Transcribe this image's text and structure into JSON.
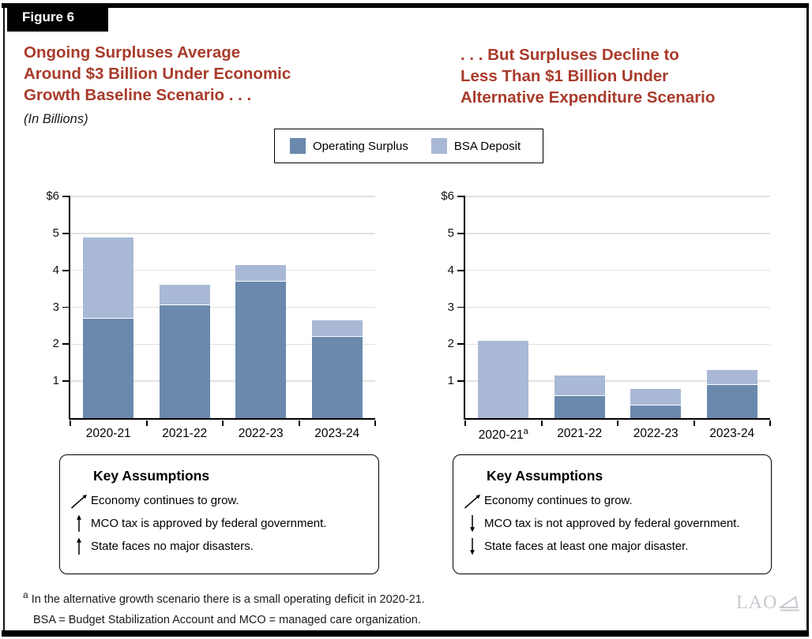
{
  "figure_label": "Figure 6",
  "header": {
    "left_title_lines": [
      "Ongoing Surpluses Average",
      "Around $3 Billion Under Economic",
      "Growth Baseline Scenario . . ."
    ],
    "right_title_lines": [
      ". . . But Surpluses Decline to",
      "Less Than $1 Billion Under",
      "Alternative Expenditure Scenario"
    ],
    "subtitle": "(In Billions)"
  },
  "colors": {
    "title_red": "#A93B2B",
    "operating_surplus": "#6A89AD",
    "bsa_deposit": "#A9B9D5",
    "gridline": "#E1E1E1"
  },
  "legend": {
    "items": [
      {
        "label": "Operating Surplus",
        "color": "#6A89AD"
      },
      {
        "label": "BSA Deposit",
        "color": "#A9B9D5"
      }
    ]
  },
  "chart_data": [
    {
      "type": "bar",
      "stacked": true,
      "title": "Ongoing Surpluses Average Around $3 Billion Under Economic Growth Baseline Scenario . . .",
      "units": "In Billions",
      "categories": [
        "2020-21",
        "2021-22",
        "2022-23",
        "2023-24"
      ],
      "category_superscripts": [
        "",
        "",
        "",
        ""
      ],
      "series": [
        {
          "name": "Operating Surplus",
          "color": "#6A89AD",
          "values": [
            2.7,
            3.05,
            3.7,
            2.2
          ]
        },
        {
          "name": "BSA Deposit",
          "color": "#A9B9D5",
          "values": [
            2.2,
            0.55,
            0.45,
            0.45
          ]
        }
      ],
      "totals": [
        4.9,
        3.6,
        4.15,
        2.65
      ],
      "ylim": [
        0,
        6
      ],
      "ytick_values": [
        1,
        2,
        3,
        4,
        5,
        6
      ],
      "ytick_labels": [
        "1",
        "2",
        "3",
        "4",
        "5",
        "$6"
      ],
      "grid": true,
      "legend_position": "top-center-shared"
    },
    {
      "type": "bar",
      "stacked": true,
      "title": ". . . But Surpluses Decline to Less Than $1 Billion Under Alternative Expenditure Scenario",
      "units": "In Billions",
      "categories": [
        "2020-21",
        "2021-22",
        "2022-23",
        "2023-24"
      ],
      "category_superscripts": [
        "a",
        "",
        "",
        ""
      ],
      "series": [
        {
          "name": "Operating Surplus",
          "color": "#6A89AD",
          "values": [
            0,
            0.6,
            0.35,
            0.9
          ]
        },
        {
          "name": "BSA Deposit",
          "color": "#A9B9D5",
          "values": [
            2.1,
            0.55,
            0.45,
            0.4
          ]
        }
      ],
      "totals": [
        2.1,
        1.15,
        0.8,
        1.3
      ],
      "ylim": [
        0,
        6
      ],
      "ytick_values": [
        1,
        2,
        3,
        4,
        5,
        6
      ],
      "ytick_labels": [
        "1",
        "2",
        "3",
        "4",
        "5",
        "$6"
      ],
      "grid": true,
      "legend_position": "top-center-shared"
    }
  ],
  "assumptions": [
    {
      "title": "Key Assumptions",
      "items": [
        {
          "icon": "arrow-up-right",
          "text": "Economy continues to grow."
        },
        {
          "icon": "arrow-up",
          "text": "MCO tax is approved by federal government."
        },
        {
          "icon": "arrow-up",
          "text": "State faces no major disasters."
        }
      ]
    },
    {
      "title": "Key Assumptions",
      "items": [
        {
          "icon": "arrow-up-right",
          "text": "Economy continues to grow."
        },
        {
          "icon": "arrow-down",
          "text": "MCO tax is not approved by federal government."
        },
        {
          "icon": "arrow-down",
          "text": "State faces at least one major disaster."
        }
      ]
    }
  ],
  "footnotes": {
    "marker": "a",
    "note_a": "In the alternative growth scenario there is a small operating deficit in 2020-21.",
    "abbreviations": "BSA = Budget Stabilization Account and MCO = managed care organization."
  },
  "logo_text": "LAO"
}
